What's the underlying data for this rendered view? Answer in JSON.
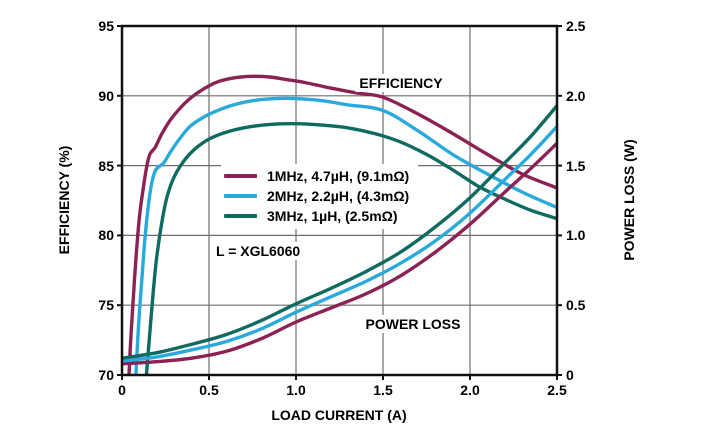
{
  "chart_data": {
    "type": "line",
    "x_axis": {
      "label": "LOAD CURRENT (A)",
      "min": 0,
      "max": 2.5,
      "ticks": [
        0,
        0.5,
        1.0,
        1.5,
        2.0,
        2.5
      ],
      "tick_labels": [
        "0",
        "0.5",
        "1.0",
        "1.5",
        "2.0",
        "2.5"
      ]
    },
    "y_left": {
      "label": "EFFICIENCY (%)",
      "min": 70,
      "max": 95,
      "ticks": [
        70,
        75,
        80,
        85,
        90,
        95
      ],
      "tick_labels": [
        "70",
        "75",
        "80",
        "85",
        "90",
        "95"
      ]
    },
    "y_right": {
      "label": "POWER LOSS (W)",
      "min": 0,
      "max": 2.5,
      "ticks": [
        0,
        0.5,
        1.0,
        1.5,
        2.0,
        2.5
      ],
      "tick_labels": [
        "0",
        "0.5",
        "1.0",
        "1.5",
        "2.0",
        "2.5"
      ]
    },
    "grid": true,
    "colors": {
      "maroon": "#8C2154",
      "cyan": "#29A9DC",
      "teal": "#0F6B61",
      "grid": "#6E6E6E",
      "axis": "#111111"
    },
    "annotations": {
      "efficiency": "EFFICIENCY",
      "power_loss": "POWER LOSS"
    },
    "note": "L = XGL6060",
    "legend": [
      {
        "label": "1MHz, 4.7µH, (9.1mΩ)",
        "color": "#8C2154"
      },
      {
        "label": "2MHz, 2.2µH, (4.3mΩ)",
        "color": "#29A9DC"
      },
      {
        "label": "3MHz, 1µH, (2.5mΩ)",
        "color": "#0F6B61"
      }
    ],
    "series": [
      {
        "id": "efficiency-1mhz",
        "axis": "left",
        "color": "#8C2154",
        "points": [
          [
            0.04,
            70
          ],
          [
            0.05,
            72.5
          ],
          [
            0.065,
            75.5
          ],
          [
            0.08,
            78.3
          ],
          [
            0.1,
            81.3
          ],
          [
            0.12,
            83.2
          ],
          [
            0.14,
            84.8
          ],
          [
            0.16,
            85.8
          ],
          [
            0.19,
            86.3
          ],
          [
            0.23,
            87.3
          ],
          [
            0.28,
            88.3
          ],
          [
            0.34,
            89.2
          ],
          [
            0.4,
            89.9
          ],
          [
            0.47,
            90.5
          ],
          [
            0.55,
            91.0
          ],
          [
            0.65,
            91.3
          ],
          [
            0.75,
            91.4
          ],
          [
            0.85,
            91.35
          ],
          [
            0.95,
            91.15
          ],
          [
            1.05,
            90.95
          ],
          [
            1.2,
            90.55
          ],
          [
            1.35,
            90.2
          ],
          [
            1.5,
            89.9
          ],
          [
            1.7,
            88.7
          ],
          [
            1.9,
            87.3
          ],
          [
            2.1,
            85.8
          ],
          [
            2.3,
            84.4
          ],
          [
            2.5,
            83.4
          ]
        ]
      },
      {
        "id": "efficiency-2mhz",
        "axis": "left",
        "color": "#29A9DC",
        "points": [
          [
            0.08,
            70
          ],
          [
            0.09,
            72.5
          ],
          [
            0.1,
            74.5
          ],
          [
            0.115,
            77
          ],
          [
            0.13,
            79.5
          ],
          [
            0.15,
            82
          ],
          [
            0.17,
            83.7
          ],
          [
            0.19,
            84.6
          ],
          [
            0.21,
            84.9
          ],
          [
            0.24,
            85.2
          ],
          [
            0.28,
            86.0
          ],
          [
            0.33,
            86.9
          ],
          [
            0.39,
            87.8
          ],
          [
            0.46,
            88.4
          ],
          [
            0.54,
            88.9
          ],
          [
            0.64,
            89.35
          ],
          [
            0.75,
            89.65
          ],
          [
            0.88,
            89.8
          ],
          [
            1.0,
            89.8
          ],
          [
            1.15,
            89.65
          ],
          [
            1.3,
            89.35
          ],
          [
            1.5,
            88.95
          ],
          [
            1.7,
            87.5
          ],
          [
            1.9,
            85.8
          ],
          [
            2.1,
            84.4
          ],
          [
            2.3,
            83.1
          ],
          [
            2.5,
            82.0
          ]
        ]
      },
      {
        "id": "efficiency-3mhz",
        "axis": "left",
        "color": "#0F6B61",
        "points": [
          [
            0.14,
            70
          ],
          [
            0.16,
            73
          ],
          [
            0.18,
            76
          ],
          [
            0.2,
            78.5
          ],
          [
            0.23,
            81
          ],
          [
            0.26,
            82.8
          ],
          [
            0.3,
            84.2
          ],
          [
            0.36,
            85.4
          ],
          [
            0.42,
            86.2
          ],
          [
            0.5,
            86.9
          ],
          [
            0.6,
            87.4
          ],
          [
            0.72,
            87.75
          ],
          [
            0.85,
            87.95
          ],
          [
            1.0,
            88.0
          ],
          [
            1.15,
            87.9
          ],
          [
            1.3,
            87.7
          ],
          [
            1.45,
            87.3
          ],
          [
            1.6,
            86.7
          ],
          [
            1.75,
            85.8
          ],
          [
            1.9,
            84.7
          ],
          [
            2.05,
            83.5
          ],
          [
            2.2,
            82.6
          ],
          [
            2.35,
            81.8
          ],
          [
            2.5,
            81.2
          ]
        ]
      },
      {
        "id": "power-loss-1mhz",
        "axis": "right",
        "color": "#8C2154",
        "points": [
          [
            0,
            0.08
          ],
          [
            0.2,
            0.095
          ],
          [
            0.4,
            0.12
          ],
          [
            0.6,
            0.17
          ],
          [
            0.8,
            0.26
          ],
          [
            1.0,
            0.38
          ],
          [
            1.2,
            0.48
          ],
          [
            1.4,
            0.58
          ],
          [
            1.6,
            0.71
          ],
          [
            1.8,
            0.88
          ],
          [
            2.0,
            1.08
          ],
          [
            2.2,
            1.31
          ],
          [
            2.35,
            1.48
          ],
          [
            2.5,
            1.66
          ]
        ]
      },
      {
        "id": "power-loss-2mhz",
        "axis": "right",
        "color": "#29A9DC",
        "points": [
          [
            0,
            0.1
          ],
          [
            0.2,
            0.13
          ],
          [
            0.4,
            0.18
          ],
          [
            0.6,
            0.24
          ],
          [
            0.8,
            0.33
          ],
          [
            1.0,
            0.45
          ],
          [
            1.2,
            0.56
          ],
          [
            1.4,
            0.67
          ],
          [
            1.6,
            0.8
          ],
          [
            1.8,
            0.96
          ],
          [
            2.0,
            1.16
          ],
          [
            2.2,
            1.4
          ],
          [
            2.35,
            1.58
          ],
          [
            2.5,
            1.78
          ]
        ]
      },
      {
        "id": "power-loss-3mhz",
        "axis": "right",
        "color": "#0F6B61",
        "points": [
          [
            0,
            0.12
          ],
          [
            0.2,
            0.16
          ],
          [
            0.4,
            0.22
          ],
          [
            0.6,
            0.29
          ],
          [
            0.8,
            0.39
          ],
          [
            1.0,
            0.51
          ],
          [
            1.2,
            0.62
          ],
          [
            1.4,
            0.74
          ],
          [
            1.6,
            0.88
          ],
          [
            1.8,
            1.06
          ],
          [
            2.0,
            1.27
          ],
          [
            2.2,
            1.52
          ],
          [
            2.35,
            1.71
          ],
          [
            2.5,
            1.93
          ]
        ]
      }
    ]
  }
}
